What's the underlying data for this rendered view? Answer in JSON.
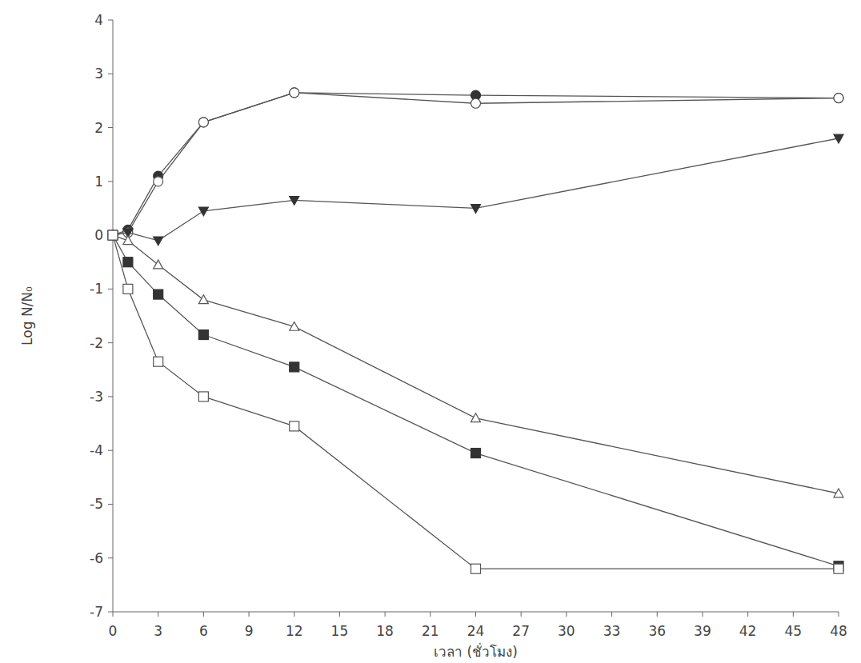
{
  "chart_data": {
    "type": "line",
    "x_label": "เวลา (ชั่วโมง)",
    "y_label": "Log N/N₀",
    "x": [
      0,
      1,
      3,
      6,
      12,
      24,
      48
    ],
    "xlim": [
      0,
      48
    ],
    "xticks": [
      0,
      3,
      6,
      9,
      12,
      15,
      18,
      21,
      24,
      27,
      30,
      33,
      36,
      39,
      42,
      45,
      48
    ],
    "ylim": [
      -7,
      4
    ],
    "yticks": [
      -7,
      -6,
      -5,
      -4,
      -3,
      -2,
      -1,
      0,
      1,
      2,
      3,
      4
    ],
    "grid": false,
    "series": [
      {
        "color": "#555555",
        "marker": "circle-filled",
        "values": [
          0,
          0.1,
          1.1,
          2.1,
          2.65,
          2.6,
          2.55
        ]
      },
      {
        "color": "#555555",
        "marker": "circle-open",
        "values": [
          0,
          0.05,
          1.0,
          2.1,
          2.65,
          2.45,
          2.55
        ]
      },
      {
        "color": "#555555",
        "marker": "triangle-down-filled",
        "values": [
          0,
          0.05,
          -0.1,
          0.45,
          0.65,
          0.5,
          1.8
        ]
      },
      {
        "color": "#555555",
        "marker": "triangle-open",
        "values": [
          0,
          -0.1,
          -0.55,
          -1.2,
          -1.7,
          -3.4,
          -4.8
        ]
      },
      {
        "color": "#555555",
        "marker": "square-filled",
        "values": [
          0,
          -0.5,
          -1.1,
          -1.85,
          -2.45,
          -4.05,
          -6.15
        ]
      },
      {
        "color": "#555555",
        "marker": "square-open",
        "values": [
          0,
          -1.0,
          -2.35,
          -3.0,
          -3.55,
          -6.2,
          -6.2
        ]
      }
    ]
  }
}
